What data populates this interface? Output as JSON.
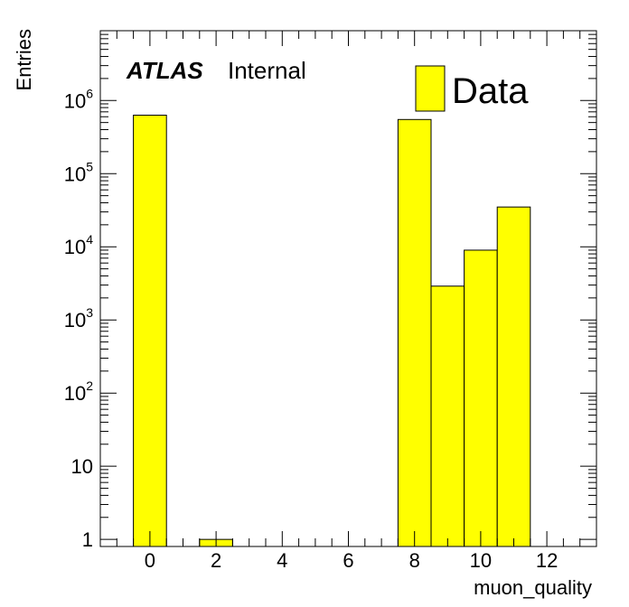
{
  "chart_data": {
    "type": "bar",
    "histogram": true,
    "xlabel": "muon_quality",
    "ylabel": "Entries",
    "yscale": "log",
    "xlim": [
      -1.5,
      13.5
    ],
    "ylim": [
      0.8,
      9000000
    ],
    "bin_width": 1,
    "x": [
      -1,
      0,
      1,
      2,
      3,
      4,
      5,
      6,
      7,
      8,
      9,
      10,
      11,
      12,
      13
    ],
    "values": [
      0,
      630000,
      0,
      1,
      0,
      0,
      0,
      0,
      0,
      550000,
      2900,
      9000,
      35000,
      0,
      0
    ],
    "series": [
      {
        "name": "Data",
        "color": "#ffff00",
        "edge_color": "#000000"
      }
    ],
    "x_ticks": [
      0,
      2,
      4,
      6,
      8,
      10,
      12
    ],
    "x_tick_labels": [
      "0",
      "2",
      "4",
      "6",
      "8",
      "10",
      "12"
    ],
    "y_ticks": [
      1,
      10,
      100,
      1000,
      10000,
      100000,
      1000000
    ],
    "y_tick_labels": [
      {
        "base": "1",
        "exp": ""
      },
      {
        "base": "10",
        "exp": ""
      },
      {
        "base": "10",
        "exp": "2"
      },
      {
        "base": "10",
        "exp": "3"
      },
      {
        "base": "10",
        "exp": "4"
      },
      {
        "base": "10",
        "exp": "5"
      },
      {
        "base": "10",
        "exp": "6"
      }
    ],
    "legend": {
      "position": "top-right",
      "entries": [
        "Data"
      ]
    },
    "annotation": {
      "experiment": "ATLAS",
      "status": "Internal"
    },
    "grid": false
  }
}
